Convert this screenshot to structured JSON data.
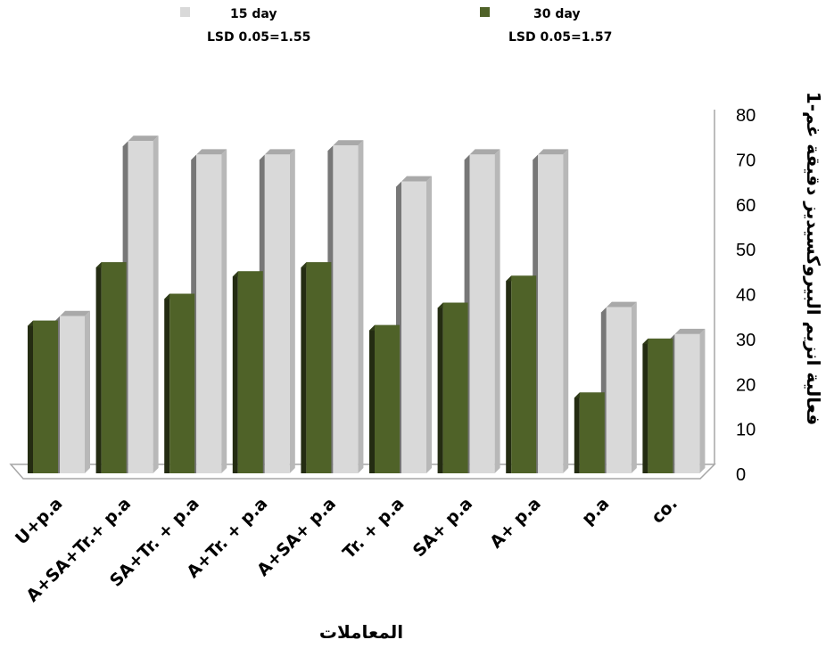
{
  "chart_data": {
    "type": "bar",
    "style": "3d-clustered-column",
    "xlabel": "المعاملات",
    "ylabel": "فعالية انزيم البيروكسيديز دقيقة غم-1",
    "ylim": [
      0,
      80
    ],
    "yticks": [
      0,
      10,
      20,
      30,
      40,
      50,
      60,
      70,
      80
    ],
    "grid": false,
    "legend_position": "top",
    "categories": [
      "U+p.a",
      "A+SA+Tr.+ p.a",
      "SA+Tr. + p.a",
      "A+Tr. + p.a",
      "A+SA+ p.a",
      "Tr. + p.a",
      "SA+ p.a",
      "A+ p.a",
      "p.a",
      "co."
    ],
    "series": [
      {
        "name": "15 day",
        "lsd": "LSD 0.05=1.55",
        "color": "#d9d9d9",
        "values": [
          35,
          74,
          71,
          71,
          73,
          65,
          71,
          71,
          37,
          31
        ]
      },
      {
        "name": "30 day",
        "lsd": "LSD 0.05=1.57",
        "color": "#4f6228",
        "values": [
          34,
          47,
          40,
          45,
          47,
          33,
          38,
          44,
          18,
          30
        ]
      }
    ]
  }
}
